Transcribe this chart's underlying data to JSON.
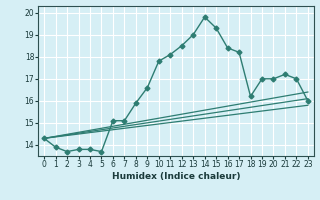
{
  "title": "",
  "xlabel": "Humidex (Indice chaleur)",
  "ylabel": "",
  "background_color": "#d6eff5",
  "grid_color": "#ffffff",
  "line_color": "#2e7d72",
  "xlim": [
    -0.5,
    23.5
  ],
  "ylim": [
    13.5,
    20.3
  ],
  "yticks": [
    14,
    15,
    16,
    17,
    18,
    19,
    20
  ],
  "xticks": [
    0,
    1,
    2,
    3,
    4,
    5,
    6,
    7,
    8,
    9,
    10,
    11,
    12,
    13,
    14,
    15,
    16,
    17,
    18,
    19,
    20,
    21,
    22,
    23
  ],
  "series1_x": [
    0,
    1,
    2,
    3,
    4,
    5,
    6,
    7,
    8,
    9,
    10,
    11,
    12,
    13,
    14,
    15,
    16,
    17,
    18,
    19,
    20,
    21,
    22,
    23
  ],
  "series1_y": [
    14.3,
    13.9,
    13.7,
    13.8,
    13.8,
    13.7,
    15.1,
    15.1,
    15.9,
    16.6,
    17.8,
    18.1,
    18.5,
    19.0,
    19.8,
    19.3,
    18.4,
    18.2,
    16.2,
    17.0,
    17.0,
    17.2,
    17.0,
    16.0
  ],
  "series2_x": [
    0,
    23
  ],
  "series2_y": [
    14.3,
    15.8
  ],
  "series3_x": [
    0,
    23
  ],
  "series3_y": [
    14.3,
    16.1
  ],
  "series4_x": [
    0,
    23
  ],
  "series4_y": [
    14.3,
    16.4
  ]
}
